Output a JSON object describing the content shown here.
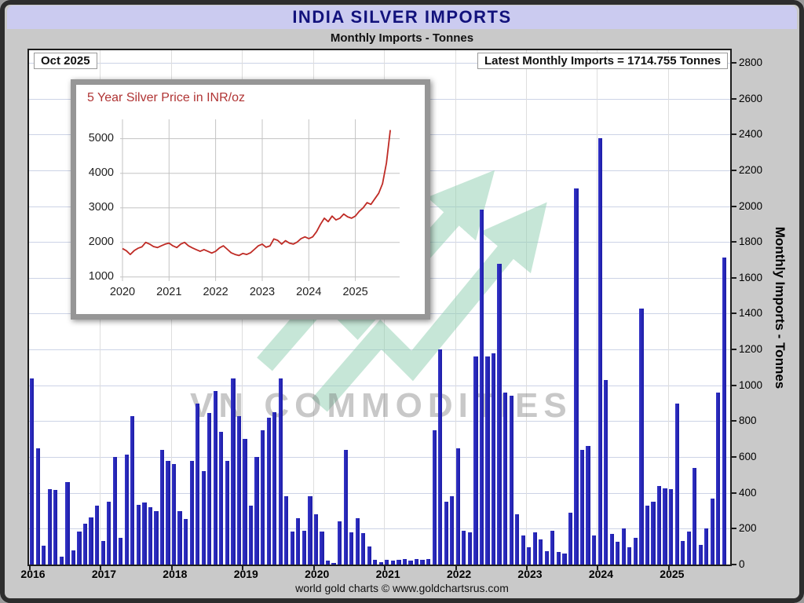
{
  "header": {
    "title": "INDIA SILVER IMPORTS",
    "subtitle": "Monthly Imports - Tonnes"
  },
  "annotations": {
    "date_label": "Oct 2025",
    "latest_label": "Latest Monthly Imports = 1714.755 Tonnes",
    "watermark": "VN COMMODITIES",
    "y_axis_title": "Monthly Imports - Tonnes",
    "footer": "world gold charts © www.goldchartsrus.com"
  },
  "chart_data": [
    {
      "type": "bar",
      "name": "india-monthly-silver-imports",
      "title": "Monthly Imports - Tonnes",
      "unit": "Tonnes",
      "start_month": "2016-01",
      "end_month": "2025-10",
      "latest_value": 1714.755,
      "ylim": [
        0,
        2870
      ],
      "y_ticks": [
        0,
        200,
        400,
        600,
        800,
        1000,
        1200,
        1400,
        1600,
        1800,
        2000,
        2200,
        2400,
        2600,
        2800
      ],
      "x_tick_labels": [
        "2016",
        "2017",
        "2018",
        "2019",
        "2020",
        "2021",
        "2022",
        "2023",
        "2024",
        "2025"
      ],
      "bar_color": "#2424b4",
      "grid": true,
      "legend": "none",
      "values": [
        1040,
        650,
        105,
        420,
        415,
        45,
        460,
        80,
        185,
        230,
        265,
        330,
        130,
        350,
        600,
        150,
        615,
        830,
        335,
        345,
        320,
        300,
        640,
        580,
        560,
        300,
        255,
        580,
        900,
        520,
        845,
        970,
        740,
        580,
        1040,
        830,
        700,
        330,
        600,
        750,
        820,
        850,
        1040,
        380,
        185,
        260,
        190,
        380,
        280,
        185,
        20,
        10,
        240,
        640,
        180,
        260,
        175,
        100,
        25,
        15,
        25,
        20,
        25,
        30,
        20,
        30,
        25,
        30,
        750,
        1200,
        350,
        380,
        650,
        190,
        180,
        1160,
        1980,
        1160,
        1180,
        1680,
        960,
        940,
        280,
        160,
        95,
        180,
        140,
        75,
        190,
        70,
        60,
        290,
        2100,
        640,
        660,
        160,
        2380,
        1030,
        170,
        125,
        200,
        95,
        150,
        1430,
        330,
        350,
        440,
        425,
        420,
        900,
        130,
        185,
        540,
        110,
        200,
        370,
        960,
        1714.755
      ]
    },
    {
      "type": "line",
      "name": "5-year-silver-price-inr",
      "title": "5 Year Silver Price in INR/oz",
      "start_month": "2020-01",
      "end_month": "2025-10",
      "ylim": [
        880,
        5560
      ],
      "y_ticks": [
        1000,
        2000,
        3000,
        4000,
        5000
      ],
      "x_tick_labels": [
        "2020",
        "2021",
        "2022",
        "2023",
        "2024",
        "2025"
      ],
      "line_color": "#bf2b25",
      "grid": true,
      "legend": "none",
      "values": [
        1820,
        1760,
        1650,
        1760,
        1830,
        1870,
        2000,
        1950,
        1880,
        1850,
        1900,
        1950,
        1980,
        1900,
        1850,
        1950,
        2000,
        1900,
        1840,
        1790,
        1740,
        1790,
        1740,
        1690,
        1740,
        1840,
        1900,
        1800,
        1700,
        1650,
        1620,
        1680,
        1650,
        1700,
        1800,
        1900,
        1950,
        1860,
        1900,
        2100,
        2060,
        1950,
        2050,
        1980,
        1950,
        2010,
        2110,
        2160,
        2110,
        2160,
        2310,
        2520,
        2700,
        2600,
        2760,
        2650,
        2700,
        2820,
        2740,
        2700,
        2760,
        2900,
        3000,
        3150,
        3100,
        3260,
        3420,
        3700,
        4300,
        5250
      ]
    }
  ]
}
